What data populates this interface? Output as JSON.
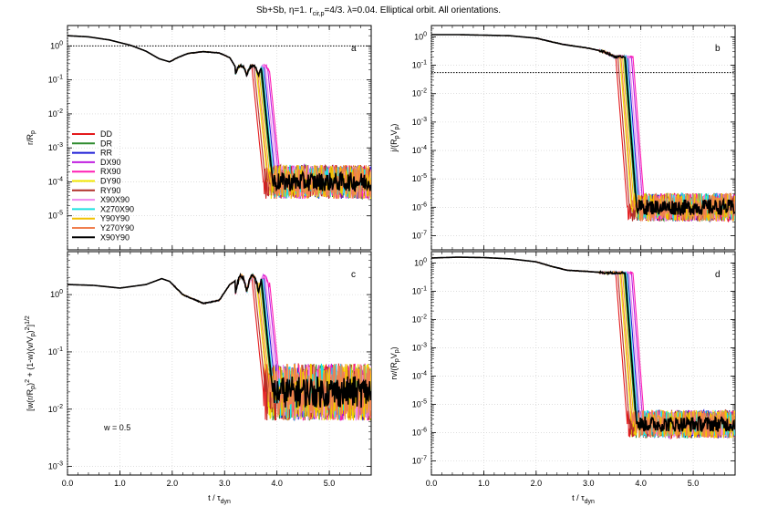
{
  "figure": {
    "title_main": "Sb+Sb, η=1. r",
    "title_sub": "cir,p",
    "title_rest": "=4/3. λ=0.04. Elliptical orbit. All orientations."
  },
  "x_axis": {
    "label_main": "t / τ",
    "label_sub": "dyn",
    "ticks": [
      0.0,
      1.0,
      2.0,
      3.0,
      4.0,
      5.0
    ],
    "tick_labels": [
      "0.0",
      "1.0",
      "2.0",
      "3.0",
      "4.0",
      "5.0"
    ],
    "range": [
      0,
      5.8
    ]
  },
  "legend": {
    "entries": [
      {
        "label": "DD",
        "color": "#e41a1c"
      },
      {
        "label": "DR",
        "color": "#2e8b2e"
      },
      {
        "label": "RR",
        "color": "#1f1fd6"
      },
      {
        "label": "DX90",
        "color": "#c020e0"
      },
      {
        "label": "RX90",
        "color": "#ff1fb4"
      },
      {
        "label": "DY90",
        "color": "#f2e600"
      },
      {
        "label": "RY90",
        "color": "#b0302a"
      },
      {
        "label": "X90X90",
        "color": "#ee88ee"
      },
      {
        "label": "X270X90",
        "color": "#1ee0e0"
      },
      {
        "label": "Y90Y90",
        "color": "#f2c200"
      },
      {
        "label": "Y270Y90",
        "color": "#f08050"
      },
      {
        "label": "X90Y90",
        "color": "#000000"
      }
    ]
  },
  "panels": [
    {
      "id": "a",
      "letter": "a",
      "ylabel_parts": [
        [
          "r/R",
          ""
        ],
        [
          "p",
          "sub"
        ]
      ],
      "yrange_exp": [
        -6,
        0.6
      ],
      "ytick_exps": [
        -5,
        -4,
        -3,
        -2,
        -1,
        0
      ],
      "ytick_labels": [
        [
          "10",
          "-5"
        ],
        [
          "10",
          "-4"
        ],
        [
          "10",
          "-3"
        ],
        [
          "10",
          "-2"
        ],
        [
          "10",
          "-1"
        ],
        [
          "10",
          "0"
        ]
      ],
      "reference_line": 1.0,
      "annotation": ""
    },
    {
      "id": "b",
      "letter": "b",
      "ylabel_parts": [
        [
          "j/(R",
          ""
        ],
        [
          "p",
          "sub"
        ],
        [
          "V",
          ""
        ],
        [
          "p",
          "sub"
        ],
        [
          ")",
          ""
        ]
      ],
      "yrange_exp": [
        -7.5,
        0.4
      ],
      "ytick_exps": [
        -7,
        -6,
        -5,
        -4,
        -3,
        -2,
        -1,
        0
      ],
      "ytick_labels": [
        [
          "10",
          "-7"
        ],
        [
          "10",
          "-6"
        ],
        [
          "10",
          "-5"
        ],
        [
          "10",
          "-4"
        ],
        [
          "10",
          "-3"
        ],
        [
          "10",
          "-2"
        ],
        [
          "10",
          "-1"
        ],
        [
          "10",
          "0"
        ]
      ],
      "reference_line": 0.055,
      "annotation": ""
    },
    {
      "id": "c",
      "letter": "c",
      "ylabel_parts": [
        [
          "[w(r/R",
          ""
        ],
        [
          "p",
          "sub"
        ],
        [
          ")",
          ""
        ],
        [
          "2",
          "sup"
        ],
        [
          " + (1-w)(v/V",
          ""
        ],
        [
          "p",
          "sub"
        ],
        [
          ")",
          ""
        ],
        [
          "2",
          "sup"
        ],
        [
          "]",
          ""
        ],
        [
          "1/2",
          "sup"
        ]
      ],
      "yrange_exp": [
        -3.15,
        0.75
      ],
      "ytick_exps": [
        -3,
        -2,
        -1,
        0
      ],
      "ytick_labels": [
        [
          "10",
          "-3"
        ],
        [
          "10",
          "-2"
        ],
        [
          "10",
          "-1"
        ],
        [
          "10",
          "0"
        ]
      ],
      "reference_line": null,
      "annotation": "w = 0.5"
    },
    {
      "id": "d",
      "letter": "d",
      "ylabel_parts": [
        [
          "rv/(R",
          ""
        ],
        [
          "p",
          "sub"
        ],
        [
          "V",
          ""
        ],
        [
          "p",
          "sub"
        ],
        [
          ")",
          ""
        ]
      ],
      "yrange_exp": [
        -7.5,
        0.4
      ],
      "ytick_exps": [
        -7,
        -6,
        -5,
        -4,
        -3,
        -2,
        -1,
        0
      ],
      "ytick_labels": [
        [
          "10",
          "-7"
        ],
        [
          "10",
          "-6"
        ],
        [
          "10",
          "-5"
        ],
        [
          "10",
          "-4"
        ],
        [
          "10",
          "-3"
        ],
        [
          "10",
          "-2"
        ],
        [
          "10",
          "-1"
        ],
        [
          "10",
          "0"
        ]
      ],
      "reference_line": null,
      "annotation": ""
    }
  ],
  "chart_data": [
    {
      "type": "line",
      "panel": "a",
      "title": "",
      "ylabel": "r/Rp",
      "xlabel": "",
      "yscale": "log",
      "xlim": [
        0,
        5.8
      ],
      "ylim": [
        1e-06,
        4
      ],
      "grid": true,
      "reference_line": 1.0,
      "legend_position": "left",
      "common_curve": {
        "x": [
          0.0,
          0.4,
          0.8,
          1.2,
          1.5,
          1.75,
          1.95,
          2.1,
          2.3,
          2.6,
          2.9,
          3.1,
          3.2
        ],
        "y": [
          2.0,
          1.85,
          1.5,
          1.05,
          0.7,
          0.42,
          0.34,
          0.45,
          0.6,
          0.68,
          0.62,
          0.45,
          0.25
        ]
      },
      "series_drop_times": {
        "DD": 3.62,
        "DR": 3.78,
        "RR": 3.85,
        "DX90": 3.92,
        "RX90": 3.95,
        "DY90": 3.7,
        "RY90": 3.66,
        "X90X90": 3.88,
        "X270X90": 3.82,
        "Y90Y90": 3.75,
        "Y270Y90": 3.72,
        "X90Y90": 3.8
      },
      "plateau_after_drop": 0.0001
    },
    {
      "type": "line",
      "panel": "b",
      "title": "",
      "ylabel": "j/(RpVp)",
      "xlabel": "",
      "yscale": "log",
      "xlim": [
        0,
        5.8
      ],
      "ylim": [
        3e-08,
        2.5
      ],
      "grid": true,
      "reference_line": 0.055,
      "common_curve": {
        "x": [
          0.0,
          0.5,
          1.0,
          1.5,
          2.0,
          2.5,
          3.0,
          3.3,
          3.5
        ],
        "y": [
          1.2,
          1.2,
          1.15,
          1.1,
          0.9,
          0.55,
          0.4,
          0.3,
          0.2
        ]
      },
      "series_drop_times": {
        "DD": 3.62,
        "DR": 3.78,
        "RR": 3.85,
        "DX90": 3.92,
        "RX90": 3.95,
        "DY90": 3.7,
        "RY90": 3.66,
        "X90X90": 3.88,
        "X270X90": 3.82,
        "Y90Y90": 3.75,
        "Y270Y90": 3.72,
        "X90Y90": 3.8
      },
      "plateau_after_drop": 1e-06
    },
    {
      "type": "line",
      "panel": "c",
      "title": "",
      "ylabel": "[w(r/Rp)^2 + (1-w)(v/Vp)^2]^1/2",
      "xlabel": "",
      "yscale": "log",
      "xlim": [
        0,
        5.8
      ],
      "ylim": [
        0.0007,
        5.5
      ],
      "grid": true,
      "annotation": "w = 0.5",
      "common_curve": {
        "x": [
          0.0,
          0.5,
          1.0,
          1.5,
          1.8,
          1.95,
          2.2,
          2.6,
          2.9,
          3.1,
          3.3
        ],
        "y": [
          1.5,
          1.45,
          1.3,
          1.5,
          1.9,
          1.7,
          1.0,
          0.7,
          0.8,
          1.5,
          2.0
        ]
      },
      "series_drop_times": {
        "DD": 3.62,
        "DR": 3.78,
        "RR": 3.85,
        "DX90": 3.92,
        "RX90": 3.95,
        "DY90": 3.7,
        "RY90": 3.66,
        "X90X90": 3.88,
        "X270X90": 3.82,
        "Y90Y90": 3.75,
        "Y270Y90": 3.72,
        "X90Y90": 3.8
      },
      "plateau_after_drop": 0.02
    },
    {
      "type": "line",
      "panel": "d",
      "title": "",
      "ylabel": "rv/(RpVp)",
      "xlabel": "",
      "yscale": "log",
      "xlim": [
        0,
        5.8
      ],
      "ylim": [
        3e-08,
        2.5
      ],
      "grid": true,
      "common_curve": {
        "x": [
          0.0,
          0.5,
          1.0,
          1.5,
          2.0,
          2.3,
          2.6,
          3.0,
          3.3
        ],
        "y": [
          1.5,
          1.6,
          1.55,
          1.4,
          1.1,
          0.75,
          0.55,
          0.5,
          0.45
        ]
      },
      "series_drop_times": {
        "DD": 3.62,
        "DR": 3.78,
        "RR": 3.85,
        "DX90": 3.92,
        "RX90": 3.95,
        "DY90": 3.7,
        "RY90": 3.66,
        "X90X90": 3.88,
        "X270X90": 3.82,
        "Y90Y90": 3.75,
        "Y270Y90": 3.72,
        "X90Y90": 3.8
      },
      "plateau_after_drop": 2e-06
    }
  ]
}
